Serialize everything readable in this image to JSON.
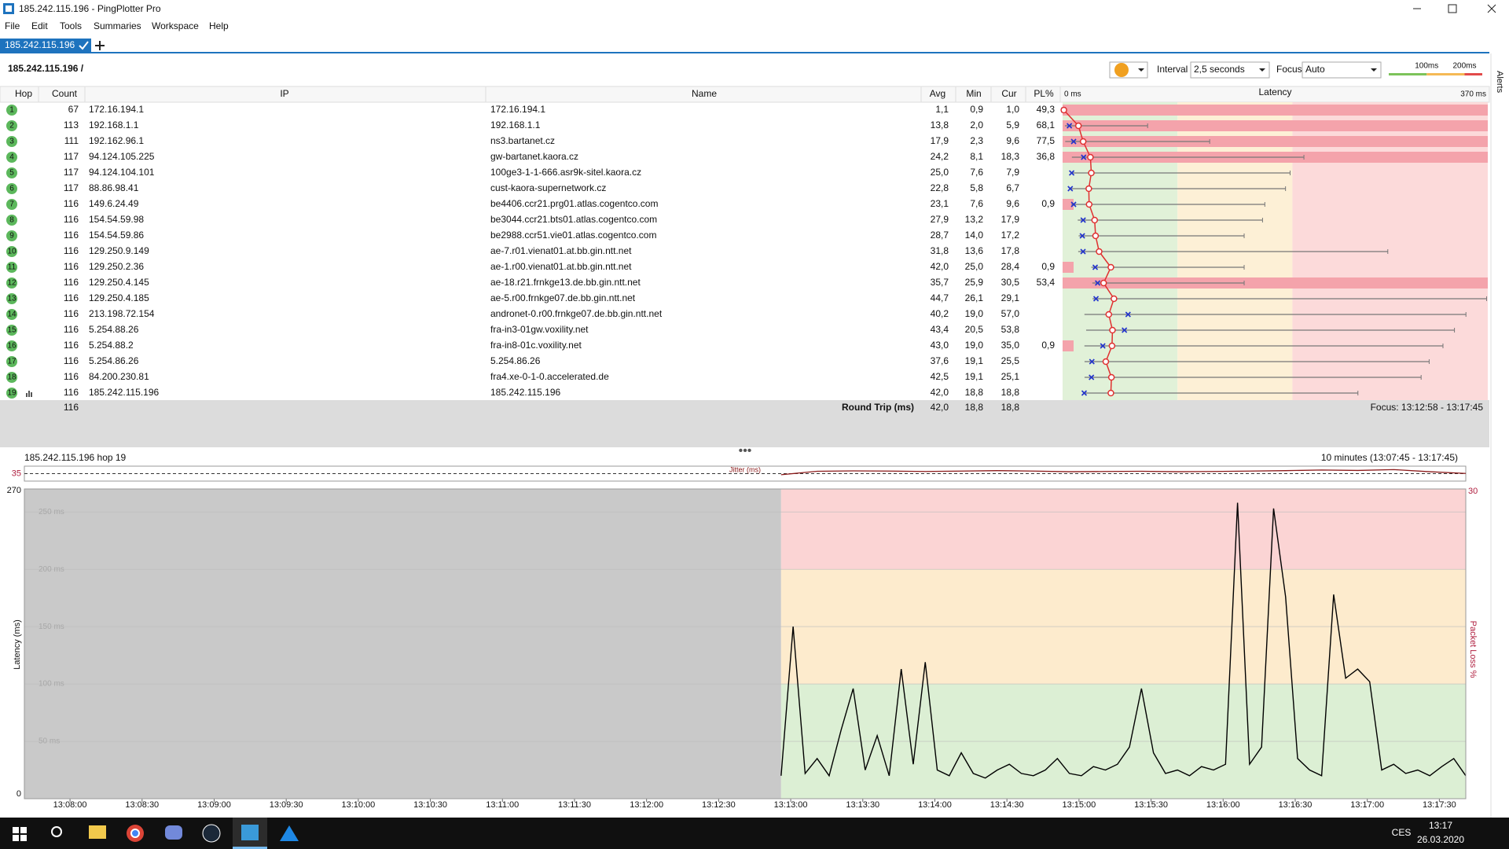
{
  "window": {
    "title": "185.242.115.196 - PingPlotter Pro"
  },
  "menu": [
    "File",
    "Edit",
    "Tools",
    "Summaries",
    "Workspace",
    "Help"
  ],
  "tab": "185.242.115.196",
  "side_tab": "Alerts",
  "toolbar": {
    "target": "185.242.115.196 /",
    "interval_label": "Interval",
    "interval": "2,5 seconds",
    "focus_label": "Focus",
    "focus": "Auto",
    "thresholds": [
      {
        "value": 100,
        "label": "100ms"
      },
      {
        "value": 200,
        "label": "200ms"
      }
    ]
  },
  "table": {
    "headers": [
      "Hop",
      "Count",
      "IP",
      "Name",
      "Avg",
      "Min",
      "Cur",
      "PL%"
    ],
    "latency_header": "Latency",
    "latency_scale": [
      {
        "value": 0,
        "label": "0 ms"
      },
      {
        "value": 370,
        "label": "370 ms"
      }
    ],
    "rows": [
      {
        "hop": 1,
        "count": 67,
        "ip": "172.16.194.1",
        "name": "172.16.194.1",
        "avg": {
          "value": 1.1,
          "label": "1,1"
        },
        "min": {
          "value": 0.9,
          "label": "0,9"
        },
        "cur": {
          "value": 1.0,
          "label": "1,0"
        },
        "pl": {
          "value": 49.3,
          "label": "49,3"
        },
        "max": 2
      },
      {
        "hop": 2,
        "count": 113,
        "ip": "192.168.1.1",
        "name": "192.168.1.1",
        "avg": {
          "value": 13.8,
          "label": "13,8"
        },
        "min": {
          "value": 2.0,
          "label": "2,0"
        },
        "cur": {
          "value": 5.9,
          "label": "5,9"
        },
        "pl": {
          "value": 68.1,
          "label": "68,1"
        },
        "max": 74
      },
      {
        "hop": 3,
        "count": 111,
        "ip": "192.162.96.1",
        "name": "ns3.bartanet.cz",
        "avg": {
          "value": 17.9,
          "label": "17,9"
        },
        "min": {
          "value": 2.3,
          "label": "2,3"
        },
        "cur": {
          "value": 9.6,
          "label": "9,6"
        },
        "pl": {
          "value": 77.5,
          "label": "77,5"
        },
        "max": 128
      },
      {
        "hop": 4,
        "count": 117,
        "ip": "94.124.105.225",
        "name": "gw-bartanet.kaora.cz",
        "avg": {
          "value": 24.2,
          "label": "24,2"
        },
        "min": {
          "value": 8.1,
          "label": "8,1"
        },
        "cur": {
          "value": 18.3,
          "label": "18,3"
        },
        "pl": {
          "value": 36.8,
          "label": "36,8"
        },
        "max": 210
      },
      {
        "hop": 5,
        "count": 117,
        "ip": "94.124.104.101",
        "name": "100ge3-1-1-666.asr9k-sitel.kaora.cz",
        "avg": {
          "value": 25.0,
          "label": "25,0"
        },
        "min": {
          "value": 7.6,
          "label": "7,6"
        },
        "cur": {
          "value": 7.9,
          "label": "7,9"
        },
        "pl": null,
        "max": 198
      },
      {
        "hop": 6,
        "count": 117,
        "ip": "88.86.98.41",
        "name": "cust-kaora-supernetwork.cz",
        "avg": {
          "value": 22.8,
          "label": "22,8"
        },
        "min": {
          "value": 5.8,
          "label": "5,8"
        },
        "cur": {
          "value": 6.7,
          "label": "6,7"
        },
        "pl": null,
        "max": 194
      },
      {
        "hop": 7,
        "count": 116,
        "ip": "149.6.24.49",
        "name": "be4406.ccr21.prg01.atlas.cogentco.com",
        "avg": {
          "value": 23.1,
          "label": "23,1"
        },
        "min": {
          "value": 7.6,
          "label": "7,6"
        },
        "cur": {
          "value": 9.6,
          "label": "9,6"
        },
        "pl": {
          "value": 0.9,
          "label": "0,9"
        },
        "max": 176
      },
      {
        "hop": 8,
        "count": 116,
        "ip": "154.54.59.98",
        "name": "be3044.ccr21.bts01.atlas.cogentco.com",
        "avg": {
          "value": 27.9,
          "label": "27,9"
        },
        "min": {
          "value": 13.2,
          "label": "13,2"
        },
        "cur": {
          "value": 17.9,
          "label": "17,9"
        },
        "pl": null,
        "max": 174
      },
      {
        "hop": 9,
        "count": 116,
        "ip": "154.54.59.86",
        "name": "be2988.ccr51.vie01.atlas.cogentco.com",
        "avg": {
          "value": 28.7,
          "label": "28,7"
        },
        "min": {
          "value": 14.0,
          "label": "14,0"
        },
        "cur": {
          "value": 17.2,
          "label": "17,2"
        },
        "pl": null,
        "max": 158
      },
      {
        "hop": 10,
        "count": 116,
        "ip": "129.250.9.149",
        "name": "ae-7.r01.vienat01.at.bb.gin.ntt.net",
        "avg": {
          "value": 31.8,
          "label": "31,8"
        },
        "min": {
          "value": 13.6,
          "label": "13,6"
        },
        "cur": {
          "value": 17.8,
          "label": "17,8"
        },
        "pl": null,
        "max": 283
      },
      {
        "hop": 11,
        "count": 116,
        "ip": "129.250.2.36",
        "name": "ae-1.r00.vienat01.at.bb.gin.ntt.net",
        "avg": {
          "value": 42.0,
          "label": "42,0"
        },
        "min": {
          "value": 25.0,
          "label": "25,0"
        },
        "cur": {
          "value": 28.4,
          "label": "28,4"
        },
        "pl": {
          "value": 0.9,
          "label": "0,9"
        },
        "max": 158
      },
      {
        "hop": 12,
        "count": 116,
        "ip": "129.250.4.145",
        "name": "ae-18.r21.frnkge13.de.bb.gin.ntt.net",
        "avg": {
          "value": 35.7,
          "label": "35,7"
        },
        "min": {
          "value": 25.9,
          "label": "25,9"
        },
        "cur": {
          "value": 30.5,
          "label": "30,5"
        },
        "pl": {
          "value": 53.4,
          "label": "53,4"
        },
        "max": 158
      },
      {
        "hop": 13,
        "count": 116,
        "ip": "129.250.4.185",
        "name": "ae-5.r00.frnkge07.de.bb.gin.ntt.net",
        "avg": {
          "value": 44.7,
          "label": "44,7"
        },
        "min": {
          "value": 26.1,
          "label": "26,1"
        },
        "cur": {
          "value": 29.1,
          "label": "29,1"
        },
        "pl": null,
        "max": 369
      },
      {
        "hop": 14,
        "count": 116,
        "ip": "213.198.72.154",
        "name": "andronet-0.r00.frnkge07.de.bb.gin.ntt.net",
        "avg": {
          "value": 40.2,
          "label": "40,2"
        },
        "min": {
          "value": 19.0,
          "label": "19,0"
        },
        "cur": {
          "value": 57.0,
          "label": "57,0"
        },
        "pl": null,
        "max": 351
      },
      {
        "hop": 15,
        "count": 116,
        "ip": "5.254.88.26",
        "name": "fra-in3-01gw.voxility.net",
        "avg": {
          "value": 43.4,
          "label": "43,4"
        },
        "min": {
          "value": 20.5,
          "label": "20,5"
        },
        "cur": {
          "value": 53.8,
          "label": "53,8"
        },
        "pl": null,
        "max": 341
      },
      {
        "hop": 16,
        "count": 116,
        "ip": "5.254.88.2",
        "name": "fra-in8-01c.voxility.net",
        "avg": {
          "value": 43.0,
          "label": "43,0"
        },
        "min": {
          "value": 19.0,
          "label": "19,0"
        },
        "cur": {
          "value": 35.0,
          "label": "35,0"
        },
        "pl": {
          "value": 0.9,
          "label": "0,9"
        },
        "max": 331
      },
      {
        "hop": 17,
        "count": 116,
        "ip": "5.254.86.26",
        "name": "5.254.86.26",
        "avg": {
          "value": 37.6,
          "label": "37,6"
        },
        "min": {
          "value": 19.1,
          "label": "19,1"
        },
        "cur": {
          "value": 25.5,
          "label": "25,5"
        },
        "pl": null,
        "max": 319
      },
      {
        "hop": 18,
        "count": 116,
        "ip": "84.200.230.81",
        "name": "fra4.xe-0-1-0.accelerated.de",
        "avg": {
          "value": 42.5,
          "label": "42,5"
        },
        "min": {
          "value": 19.1,
          "label": "19,1"
        },
        "cur": {
          "value": 25.1,
          "label": "25,1"
        },
        "pl": null,
        "max": 312
      },
      {
        "hop": 19,
        "count": 116,
        "ip": "185.242.115.196",
        "name": "185.242.115.196",
        "avg": {
          "value": 42.0,
          "label": "42,0"
        },
        "min": {
          "value": 18.8,
          "label": "18,8"
        },
        "cur": {
          "value": 18.8,
          "label": "18,8"
        },
        "pl": null,
        "max": 257
      }
    ],
    "footer": {
      "count": 116,
      "label": "Round Trip (ms)",
      "avg": {
        "value": 42.0,
        "label": "42,0"
      },
      "min": {
        "value": 18.8,
        "label": "18,8"
      },
      "cur": {
        "value": 18.8,
        "label": "18,8"
      },
      "focus": "Focus: 13:12:58 - 13:17:45"
    }
  },
  "chart_data": {
    "type": "line",
    "title": "185.242.115.196 hop 19",
    "subtitle": "10 minutes (13:07:45 - 13:17:45)",
    "y_label": "Latency (ms)",
    "y2_label": "Packet Loss %",
    "x": [
      47576,
      47581,
      47586,
      47591,
      47596,
      47601,
      47606,
      47611,
      47616,
      47621,
      47626,
      47631,
      47636,
      47641,
      47646,
      47651,
      47656,
      47661,
      47666,
      47671,
      47676,
      47681,
      47686,
      47691,
      47696,
      47701,
      47706,
      47711,
      47716,
      47721,
      47726,
      47731,
      47736,
      47741,
      47746,
      47751,
      47756,
      47761,
      47766,
      47771,
      47776,
      47781,
      47786,
      47791,
      47796,
      47801,
      47806,
      47811,
      47816,
      47821,
      47826,
      47831,
      47836,
      47841,
      47846,
      47851,
      47856,
      47861
    ],
    "series": [
      {
        "color": "#000000",
        "values": [
          20,
          150,
          22,
          35,
          20,
          60,
          96,
          25,
          55,
          20,
          113,
          30,
          119,
          25,
          20,
          40,
          22,
          18,
          25,
          30,
          22,
          20,
          25,
          35,
          22,
          20,
          28,
          25,
          30,
          45,
          96,
          40,
          22,
          25,
          20,
          28,
          25,
          30,
          258,
          30,
          45,
          253,
          176,
          35,
          25,
          20,
          178,
          105,
          113,
          102,
          25,
          30,
          22,
          25,
          20,
          28,
          35,
          20
        ]
      }
    ],
    "xlim": [
      47261,
      47861
    ],
    "xticks": [
      {
        "value": 47280,
        "label": "13:08:00"
      },
      {
        "value": 47310,
        "label": "13:08:30"
      },
      {
        "value": 47340,
        "label": "13:09:00"
      },
      {
        "value": 47370,
        "label": "13:09:30"
      },
      {
        "value": 47400,
        "label": "13:10:00"
      },
      {
        "value": 47430,
        "label": "13:10:30"
      },
      {
        "value": 47460,
        "label": "13:11:00"
      },
      {
        "value": 47490,
        "label": "13:11:30"
      },
      {
        "value": 47520,
        "label": "13:12:00"
      },
      {
        "value": 47550,
        "label": "13:12:30"
      },
      {
        "value": 47580,
        "label": "13:13:00"
      },
      {
        "value": 47610,
        "label": "13:13:30"
      },
      {
        "value": 47640,
        "label": "13:14:00"
      },
      {
        "value": 47670,
        "label": "13:14:30"
      },
      {
        "value": 47700,
        "label": "13:15:00"
      },
      {
        "value": 47730,
        "label": "13:15:30"
      },
      {
        "value": 47760,
        "label": "13:16:00"
      },
      {
        "value": 47790,
        "label": "13:16:30"
      },
      {
        "value": 47820,
        "label": "13:17:00"
      },
      {
        "value": 47850,
        "label": "13:17:30"
      }
    ],
    "ylim": [
      0,
      270
    ],
    "yticks": [
      0,
      {
        "value": 50,
        "label": "50 ms"
      },
      {
        "value": 100,
        "label": "100 ms"
      },
      {
        "value": 150,
        "label": "150 ms"
      },
      {
        "value": 200,
        "label": "200 ms"
      },
      {
        "value": 250,
        "label": "250 ms"
      },
      270
    ],
    "y2lim": [
      0,
      30
    ],
    "y2ticks": [
      30
    ],
    "jitter": {
      "label": "Jitter (ms)",
      "color": "#8b1a1a",
      "ylim": [
        0,
        70
      ],
      "yticks": [
        35
      ],
      "x": [
        47576,
        47591,
        47606,
        47621,
        47636,
        47651,
        47666,
        47681,
        47696,
        47711,
        47726,
        47741,
        47756,
        47771,
        47786,
        47801,
        47816,
        47831,
        47846,
        47861
      ],
      "values": [
        30,
        46,
        48,
        47,
        45,
        47,
        49,
        47,
        44,
        45,
        46,
        44,
        45,
        47,
        49,
        52,
        50,
        54,
        44,
        36
      ]
    }
  },
  "taskbar": {
    "language": "CES",
    "time": "13:17",
    "date": "26.03.2020"
  }
}
